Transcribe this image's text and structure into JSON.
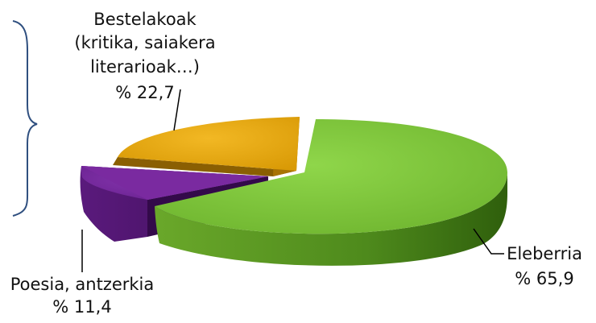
{
  "chart_data": {
    "type": "pie",
    "style": "3d-exploded",
    "slices": [
      {
        "key": "eleberria",
        "label": "Eleberria",
        "value_text": "% 65,9",
        "value": 65.9,
        "color": "#79c13a"
      },
      {
        "key": "poesia",
        "label": "Poesia, antzerkia",
        "value_text": "% 11,4",
        "value": 11.4,
        "color": "#7a2aa0"
      },
      {
        "key": "bestelakoak",
        "label_lines": [
          "Bestelakoak",
          "(kritika, saiakera",
          "literarioak…)"
        ],
        "value_text": "% 22,7",
        "value": 22.7,
        "color": "#e8ab0f"
      }
    ],
    "annotation": "brace-left-of-bestelakoak"
  }
}
